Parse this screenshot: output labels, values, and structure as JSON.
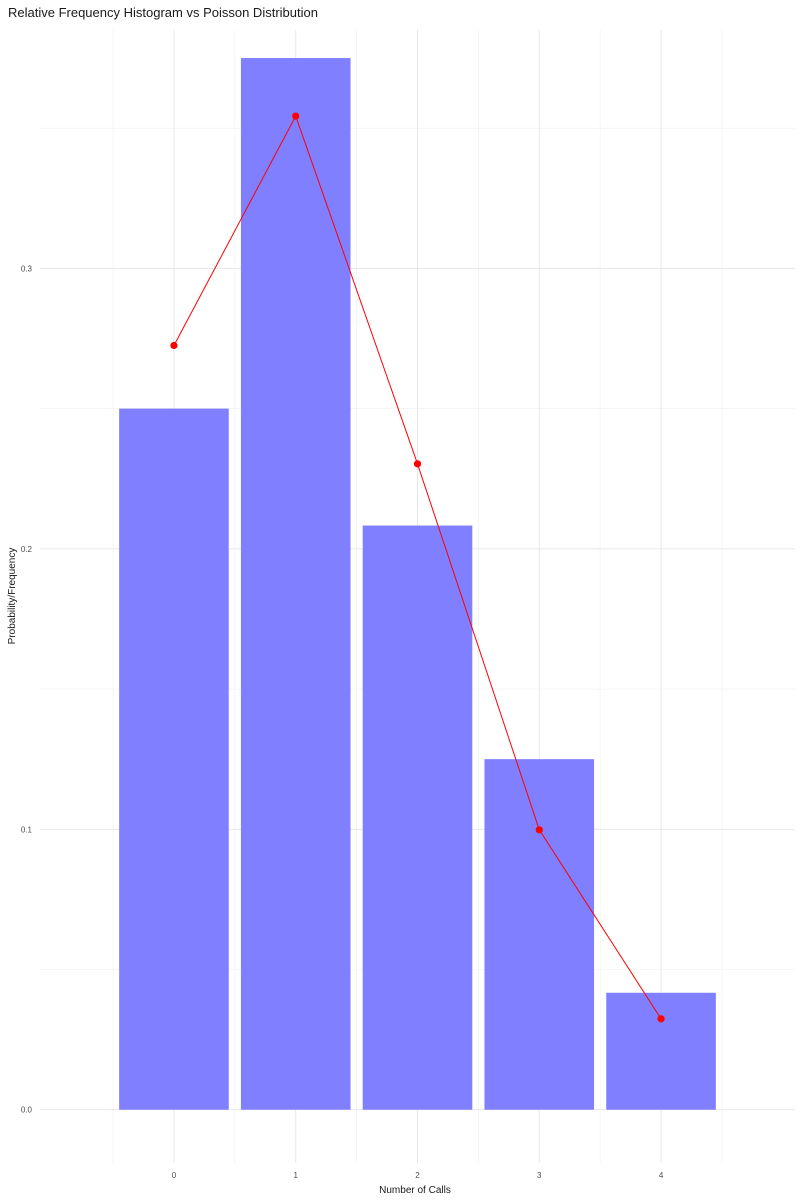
{
  "chart_data": {
    "type": "bar",
    "title": "Relative Frequency Histogram vs Poisson Distribution",
    "xlabel": "Number of Calls",
    "ylabel": "Probability/Frequency",
    "categories": [
      "0",
      "1",
      "2",
      "3",
      "4"
    ],
    "series": [
      {
        "type": "bar",
        "values": [
          0.25,
          0.375,
          0.2083,
          0.125,
          0.0417
        ],
        "color": "#7f7fff"
      },
      {
        "type": "line",
        "values": [
          0.2725,
          0.3543,
          0.2303,
          0.0998,
          0.0324
        ],
        "color": "#ff0000"
      }
    ],
    "yticks": [
      "0.0",
      "0.1",
      "0.2",
      "0.3"
    ],
    "ylim": [
      -0.019,
      0.385
    ],
    "grid": true,
    "legend": "none"
  }
}
